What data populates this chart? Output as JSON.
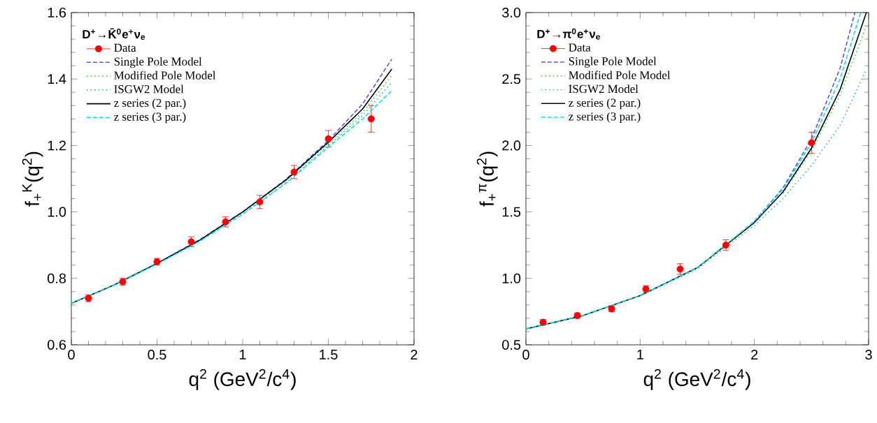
{
  "chart_data": [
    {
      "type": "line",
      "xlabel": "q$^{2}$ (GeV$^{2}$/c$^{4}$)",
      "ylabel": "f$_{+}$$^{K}$(q$^{2}$)",
      "legend_title": "**D$^{+}$→K̄$^{0}$e$^{+}$ν$_{e}$**",
      "legend": "top left",
      "grid": false,
      "xlim": [
        0,
        2
      ],
      "ylim": [
        0.6,
        1.6
      ],
      "xticks": [
        0,
        0.5,
        1,
        1.5,
        2
      ],
      "yticks": [
        {
          "value": 0.6,
          "label": "0.6"
        },
        {
          "value": 0.8,
          "label": "0.8"
        },
        {
          "value": 1.0,
          "label": "1.0"
        },
        {
          "value": 1.2,
          "label": "1.2"
        },
        {
          "value": 1.4,
          "label": "1.4"
        },
        {
          "value": 1.6,
          "label": "1.6"
        }
      ],
      "series": [
        {
          "name": "Data",
          "type": "scatter",
          "marker": "circle",
          "color": "#ff0000",
          "x": [
            0.1,
            0.3,
            0.5,
            0.7,
            0.9,
            1.1,
            1.3,
            1.5,
            1.75
          ],
          "values": [
            0.74,
            0.79,
            0.85,
            0.91,
            0.97,
            1.03,
            1.12,
            1.22,
            1.28
          ],
          "errors": [
            0.01,
            0.01,
            0.01,
            0.015,
            0.015,
            0.02,
            0.02,
            0.025,
            0.04
          ]
        },
        {
          "name": "Single Pole Model",
          "line_style": "dashed",
          "color": "#5555ee",
          "x": [
            0,
            0.25,
            0.5,
            0.75,
            1.0,
            1.25,
            1.5,
            1.7,
            1.87
          ],
          "values": [
            0.725,
            0.78,
            0.845,
            0.917,
            1.0,
            1.097,
            1.215,
            1.325,
            1.46
          ]
        },
        {
          "name": "Modified Pole Model",
          "line_style": "dotted",
          "color": "#33dd33",
          "x": [
            1.25,
            1.5,
            1.7,
            1.87
          ],
          "values": [
            1.093,
            1.205,
            1.3,
            1.41
          ]
        },
        {
          "name": "ISGW2 Model",
          "line_style": "dotted",
          "color": "#33bb99",
          "x": [
            0,
            0.25,
            0.5,
            0.75,
            1.0,
            1.25,
            1.5,
            1.7,
            1.87
          ],
          "values": [
            0.725,
            0.78,
            0.844,
            0.913,
            0.995,
            1.088,
            1.2,
            1.29,
            1.39
          ]
        },
        {
          "name": "z series (2 par.)",
          "line_style": "solid",
          "color": "#000000",
          "x": [
            0,
            0.25,
            0.5,
            0.75,
            1.0,
            1.25,
            1.5,
            1.7,
            1.87
          ],
          "values": [
            0.725,
            0.78,
            0.845,
            0.915,
            1.0,
            1.095,
            1.21,
            1.31,
            1.43
          ]
        },
        {
          "name": "z series (3 par.)",
          "line_style": "dashed",
          "color": "#00e5ee",
          "x": [
            0,
            0.25,
            0.5,
            0.75,
            1.0,
            1.25,
            1.5,
            1.7,
            1.87
          ],
          "values": [
            0.725,
            0.78,
            0.843,
            0.912,
            0.993,
            1.085,
            1.195,
            1.28,
            1.365
          ]
        }
      ]
    },
    {
      "type": "line",
      "xlabel": "q$^{2}$ (GeV$^{2}$/c$^{4}$)",
      "ylabel": "f$_{+}$$^{π}$(q$^{2}$)",
      "legend_title": "**D$^{+}$→π$^{0}$e$^{+}$ν$_{e}$**",
      "legend": "top left",
      "grid": false,
      "xlim": [
        0,
        3
      ],
      "ylim": [
        0.5,
        3.0
      ],
      "xticks": [
        0,
        1,
        2,
        3
      ],
      "yticks": [
        {
          "value": 0.5,
          "label": "0.5"
        },
        {
          "value": 1.0,
          "label": "1.0"
        },
        {
          "value": 1.5,
          "label": "1.5"
        },
        {
          "value": 2.0,
          "label": "2.0"
        },
        {
          "value": 2.5,
          "label": "2.5"
        },
        {
          "value": 3.0,
          "label": "3.0"
        }
      ],
      "series": [
        {
          "name": "Data",
          "type": "scatter",
          "marker": "circle",
          "color": "#ff0000",
          "x": [
            0.15,
            0.45,
            0.75,
            1.05,
            1.35,
            1.75,
            2.5
          ],
          "values": [
            0.67,
            0.72,
            0.77,
            0.92,
            1.07,
            1.25,
            2.02
          ],
          "errors": [
            0.02,
            0.02,
            0.02,
            0.025,
            0.04,
            0.04,
            0.08
          ]
        },
        {
          "name": "Single Pole Model",
          "line_style": "dashed",
          "color": "#5555ee",
          "x": [
            2.0,
            2.25,
            2.5,
            2.75,
            2.88
          ],
          "values": [
            1.43,
            1.68,
            2.05,
            2.58,
            3.0
          ]
        },
        {
          "name": "Modified Pole Model",
          "line_style": "dotted",
          "color": "#33dd33",
          "x": [
            2.25,
            2.5,
            2.75,
            2.98
          ],
          "values": [
            1.64,
            1.96,
            2.38,
            2.9
          ]
        },
        {
          "name": "ISGW2 Model",
          "line_style": "dotted",
          "color": "#33bb99",
          "x": [
            0,
            0.5,
            1.0,
            1.5,
            2.0,
            2.25,
            2.5,
            2.75,
            2.98
          ],
          "values": [
            0.62,
            0.72,
            0.87,
            1.07,
            1.4,
            1.6,
            1.85,
            2.15,
            2.57
          ]
        },
        {
          "name": "z series (2 par.)",
          "line_style": "solid",
          "color": "#000000",
          "x": [
            0,
            0.5,
            1.0,
            1.5,
            2.0,
            2.25,
            2.5,
            2.75,
            2.98
          ],
          "values": [
            0.62,
            0.72,
            0.87,
            1.08,
            1.42,
            1.65,
            1.98,
            2.42,
            3.0
          ]
        },
        {
          "name": "z series (3 par.)",
          "line_style": "dashed",
          "color": "#00e5ee",
          "x": [
            0,
            0.5,
            1.0,
            1.5,
            2.0,
            2.25,
            2.5,
            2.75,
            2.93
          ],
          "values": [
            0.62,
            0.72,
            0.87,
            1.08,
            1.43,
            1.67,
            2.02,
            2.5,
            3.0
          ]
        }
      ]
    }
  ]
}
